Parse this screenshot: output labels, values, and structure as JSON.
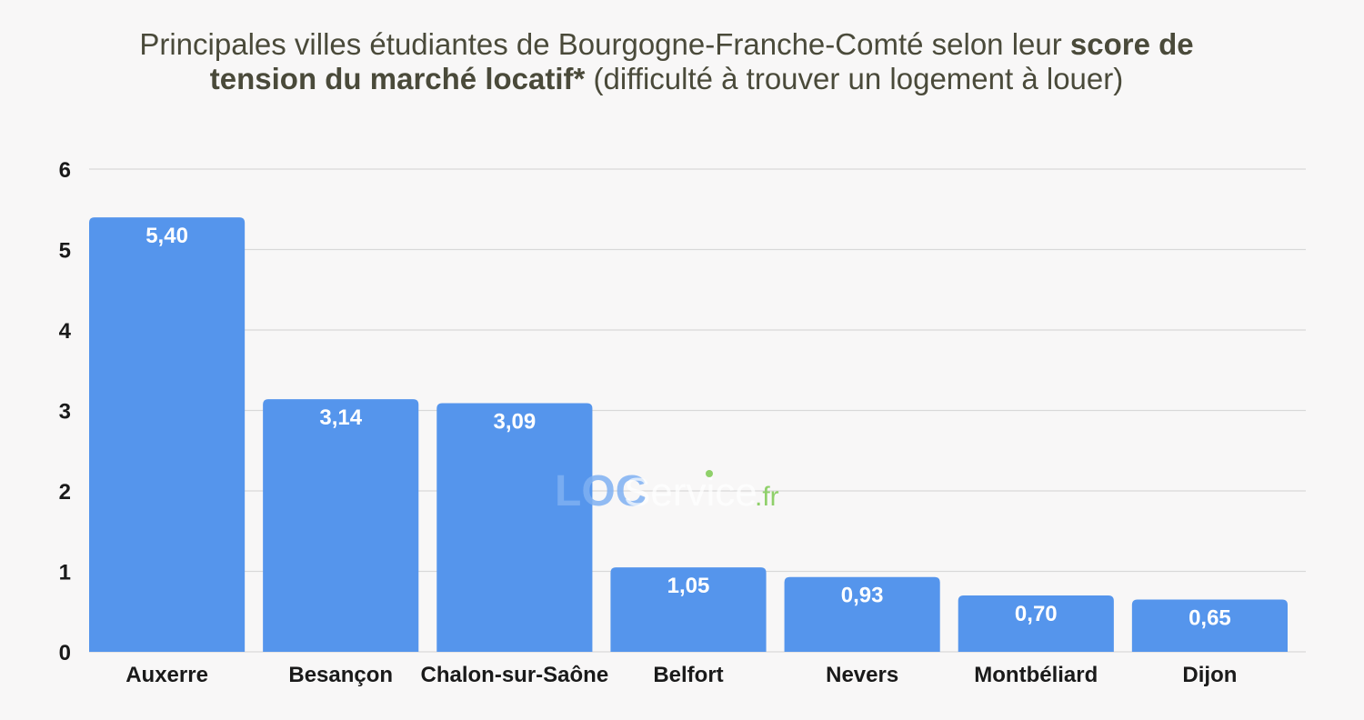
{
  "title": {
    "part1": "Principales villes étudiantes de Bourgogne-Franche-Comté selon leur ",
    "bold1": "score de",
    "bold2": "tension du marché locatif*",
    "part2": " (difficulté à trouver un logement à louer)"
  },
  "watermark": {
    "loc": "LOC",
    "service": "Service",
    "tld": ".fr"
  },
  "colors": {
    "bar": "#5595ec",
    "grid": "#d9d9d9",
    "background": "#f8f7f7",
    "watermark_blue": "#7fb0f2",
    "watermark_green": "#8fd06a"
  },
  "chart_data": {
    "type": "bar",
    "categories": [
      "Auxerre",
      "Besançon",
      "Chalon-sur-Saône",
      "Belfort",
      "Nevers",
      "Montbéliard",
      "Dijon"
    ],
    "values": [
      5.4,
      3.14,
      3.09,
      1.05,
      0.93,
      0.7,
      0.65
    ],
    "value_labels": [
      "5,40",
      "3,14",
      "3,09",
      "1,05",
      "0,93",
      "0,70",
      "0,65"
    ],
    "yticks": [
      "0",
      "1",
      "2",
      "3",
      "4",
      "5",
      "6"
    ],
    "ylim": [
      0,
      6
    ],
    "grid": true
  }
}
